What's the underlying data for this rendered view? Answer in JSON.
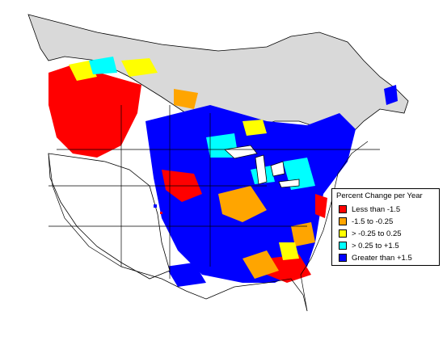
{
  "map": {
    "colors": {
      "background": "#ffffff",
      "no_data_region": "#d9d9d9",
      "boundary": "#000000",
      "less_than_-1.5": "#ff0000",
      "-1.5_to_-0.25": "#ffa500",
      "-0.25_to_0.25": "#ffff00",
      "0.25_to_1.5": "#00ffff",
      "greater_than_1.5": "#0000ff"
    }
  },
  "legend": {
    "title": "Percent Change per Year",
    "items": [
      {
        "label": "Less than -1.5",
        "color": "#ff0000"
      },
      {
        "label": "-1.5 to -0.25",
        "color": "#ffa500"
      },
      {
        "label": "> -0.25 to 0.25",
        "color": "#ffff00"
      },
      {
        "label": "> 0.25 to +1.5",
        "color": "#00ffff"
      },
      {
        "label": "Greater than +1.5",
        "color": "#0000ff"
      }
    ]
  }
}
